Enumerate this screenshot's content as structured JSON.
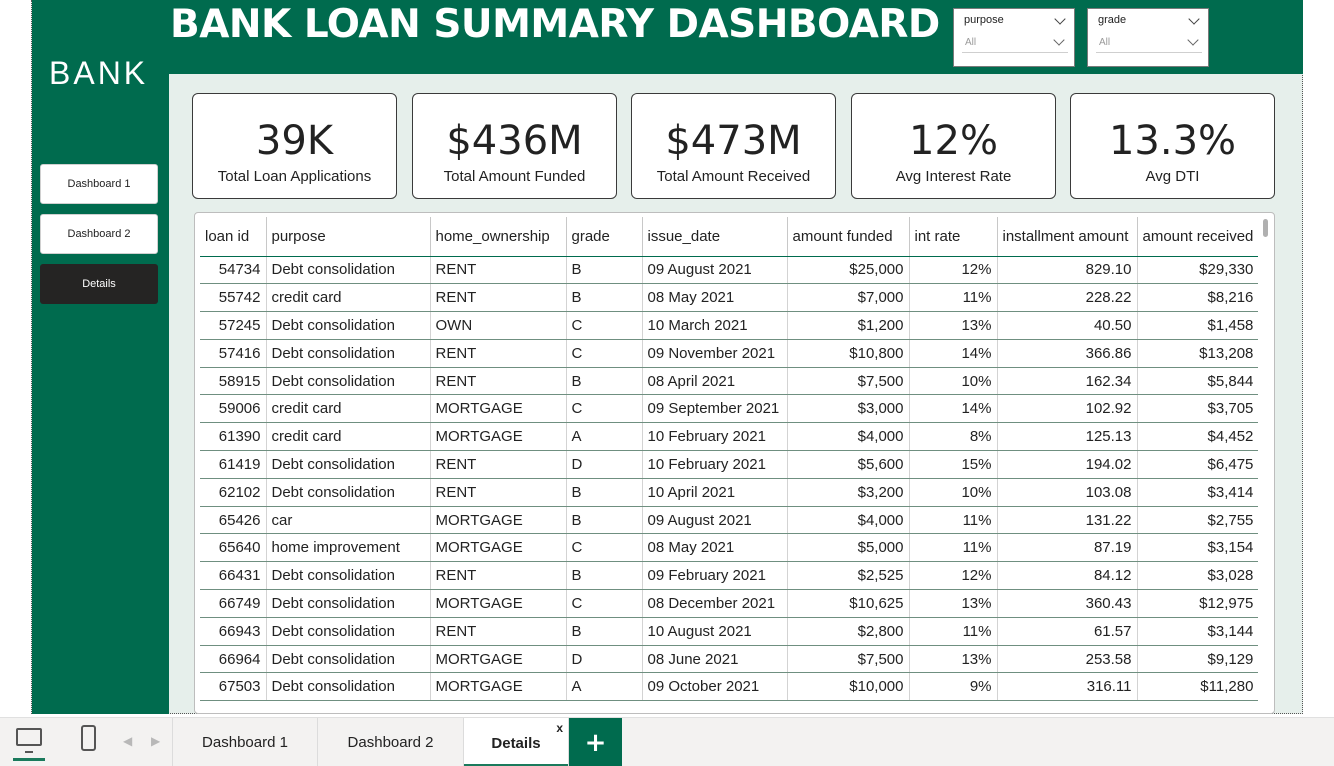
{
  "header": {
    "title": "BANK LOAN SUMMARY DASHBOARD"
  },
  "sidebar": {
    "logo": "BANK",
    "items": [
      {
        "label": "Dashboard 1"
      },
      {
        "label": "Dashboard 2"
      },
      {
        "label": "Details",
        "active": true
      }
    ]
  },
  "filters": [
    {
      "label": "purpose",
      "value": "All"
    },
    {
      "label": "grade",
      "value": "All"
    }
  ],
  "kpis": [
    {
      "value": "39K",
      "label": "Total Loan Applications"
    },
    {
      "value": "$436M",
      "label": "Total Amount Funded"
    },
    {
      "value": "$473M",
      "label": "Total Amount Received"
    },
    {
      "value": "12%",
      "label": "Avg Interest Rate"
    },
    {
      "value": "13.3%",
      "label": "Avg DTI"
    }
  ],
  "table": {
    "columns": [
      "loan id",
      "purpose",
      "home_ownership",
      "grade",
      "issue_date",
      "amount funded",
      "int rate",
      "installment amount",
      "amount received"
    ],
    "rows": [
      [
        "54734",
        "Debt consolidation",
        "RENT",
        "B",
        "09 August 2021",
        "$25,000",
        "12%",
        "829.10",
        "$29,330"
      ],
      [
        "55742",
        "credit card",
        "RENT",
        "B",
        "08 May 2021",
        "$7,000",
        "11%",
        "228.22",
        "$8,216"
      ],
      [
        "57245",
        "Debt consolidation",
        "OWN",
        "C",
        "10 March 2021",
        "$1,200",
        "13%",
        "40.50",
        "$1,458"
      ],
      [
        "57416",
        "Debt consolidation",
        "RENT",
        "C",
        "09 November 2021",
        "$10,800",
        "14%",
        "366.86",
        "$13,208"
      ],
      [
        "58915",
        "Debt consolidation",
        "RENT",
        "B",
        "08 April 2021",
        "$7,500",
        "10%",
        "162.34",
        "$5,844"
      ],
      [
        "59006",
        "credit card",
        "MORTGAGE",
        "C",
        "09 September 2021",
        "$3,000",
        "14%",
        "102.92",
        "$3,705"
      ],
      [
        "61390",
        "credit card",
        "MORTGAGE",
        "A",
        "10 February 2021",
        "$4,000",
        "8%",
        "125.13",
        "$4,452"
      ],
      [
        "61419",
        "Debt consolidation",
        "RENT",
        "D",
        "10 February 2021",
        "$5,600",
        "15%",
        "194.02",
        "$6,475"
      ],
      [
        "62102",
        "Debt consolidation",
        "RENT",
        "B",
        "10 April 2021",
        "$3,200",
        "10%",
        "103.08",
        "$3,414"
      ],
      [
        "65426",
        "car",
        "MORTGAGE",
        "B",
        "09 August 2021",
        "$4,000",
        "11%",
        "131.22",
        "$2,755"
      ],
      [
        "65640",
        "home improvement",
        "MORTGAGE",
        "C",
        "08 May 2021",
        "$5,000",
        "11%",
        "87.19",
        "$3,154"
      ],
      [
        "66431",
        "Debt consolidation",
        "RENT",
        "B",
        "09 February 2021",
        "$2,525",
        "12%",
        "84.12",
        "$3,028"
      ],
      [
        "66749",
        "Debt consolidation",
        "MORTGAGE",
        "C",
        "08 December 2021",
        "$10,625",
        "13%",
        "360.43",
        "$12,975"
      ],
      [
        "66943",
        "Debt consolidation",
        "RENT",
        "B",
        "10 August 2021",
        "$2,800",
        "11%",
        "61.57",
        "$3,144"
      ],
      [
        "66964",
        "Debt consolidation",
        "MORTGAGE",
        "D",
        "08 June 2021",
        "$7,500",
        "13%",
        "253.58",
        "$9,129"
      ],
      [
        "67503",
        "Debt consolidation",
        "MORTGAGE",
        "A",
        "09 October 2021",
        "$10,000",
        "9%",
        "316.11",
        "$11,280"
      ]
    ]
  },
  "bottom_tabs": [
    {
      "label": "Dashboard 1"
    },
    {
      "label": "Dashboard 2"
    },
    {
      "label": "Details",
      "active": true,
      "close": "x"
    }
  ],
  "add_tab_label": "+",
  "colors": {
    "brand": "#006b4e",
    "dark_button": "#252423"
  }
}
